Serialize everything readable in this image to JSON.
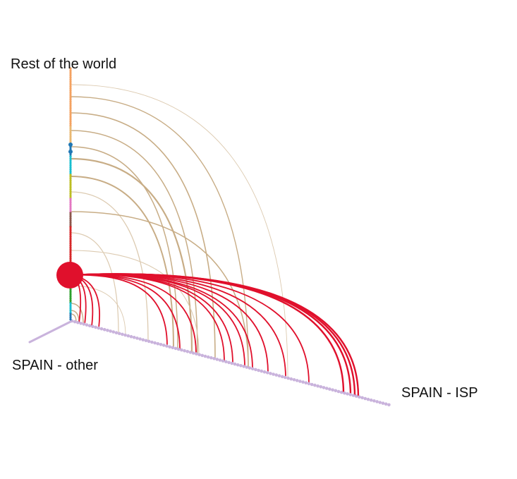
{
  "diagram": {
    "type": "hive-plot",
    "axes": [
      {
        "id": "rest",
        "label": "Rest of the world"
      },
      {
        "id": "other",
        "label": "SPAIN - other"
      },
      {
        "id": "isp",
        "label": "SPAIN - ISP"
      }
    ],
    "colors": {
      "isp_axis_nodes": "#c9b3dc",
      "other_axis": "#c9b3dc",
      "hub_node": "#e0102c",
      "hub_edges": "#e0102c",
      "rest_edges": "#c8ad86",
      "rest_edges_light": "#dccab0",
      "rest_axis_palette": [
        "#f4a261",
        "#e9b872",
        "#1f77b4",
        "#17becf",
        "#bcbd22",
        "#e377c2",
        "#8c564b",
        "#d62728",
        "#2ca02c",
        "#7f7f7f",
        "#9467bd"
      ]
    }
  }
}
